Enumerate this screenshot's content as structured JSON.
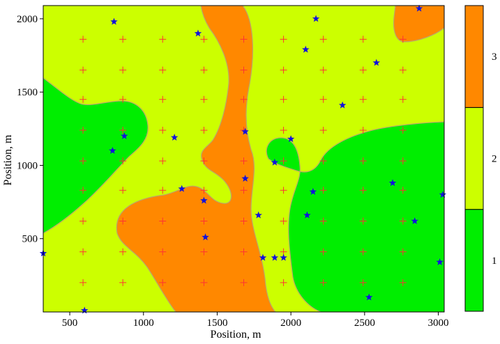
{
  "chart_data": {
    "type": "heatmap",
    "subtype": "categorical-contour-map",
    "xlabel": "Position, m",
    "ylabel": "Position, m",
    "xlim": [
      320,
      3040
    ],
    "ylim": [
      0,
      2090
    ],
    "xticks": [
      500,
      1000,
      1500,
      2000,
      2500,
      3000
    ],
    "yticks": [
      500,
      1000,
      1500,
      2000
    ],
    "colorbar": {
      "classes": [
        {
          "label": "1",
          "color": "#00ee00"
        },
        {
          "label": "2",
          "color": "#ccff00"
        },
        {
          "label": "3",
          "color": "#ff8800"
        }
      ]
    },
    "grid_points": {
      "marker": "plus",
      "color": "#ff3333",
      "x": [
        590,
        860,
        1130,
        1410,
        1680,
        1950,
        2220,
        2490,
        2760
      ],
      "y": [
        200,
        410,
        620,
        830,
        1030,
        1240,
        1450,
        1650,
        1860
      ]
    },
    "stations": {
      "marker": "star",
      "color": "#1111dd",
      "points": [
        [
          800,
          1980
        ],
        [
          1370,
          1900
        ],
        [
          2170,
          2000
        ],
        [
          2870,
          2070
        ],
        [
          2100,
          1790
        ],
        [
          2580,
          1700
        ],
        [
          2350,
          1410
        ],
        [
          870,
          1200
        ],
        [
          1210,
          1190
        ],
        [
          1690,
          1230
        ],
        [
          2000,
          1180
        ],
        [
          790,
          1100
        ],
        [
          1890,
          1020
        ],
        [
          1690,
          910
        ],
        [
          2690,
          880
        ],
        [
          1260,
          840
        ],
        [
          2150,
          820
        ],
        [
          3030,
          800
        ],
        [
          1410,
          760
        ],
        [
          1780,
          660
        ],
        [
          2110,
          660
        ],
        [
          2840,
          620
        ],
        [
          1420,
          510
        ],
        [
          320,
          400
        ],
        [
          1810,
          370
        ],
        [
          1890,
          370
        ],
        [
          1950,
          370
        ],
        [
          3010,
          340
        ],
        [
          2530,
          100
        ],
        [
          600,
          10
        ]
      ]
    }
  }
}
